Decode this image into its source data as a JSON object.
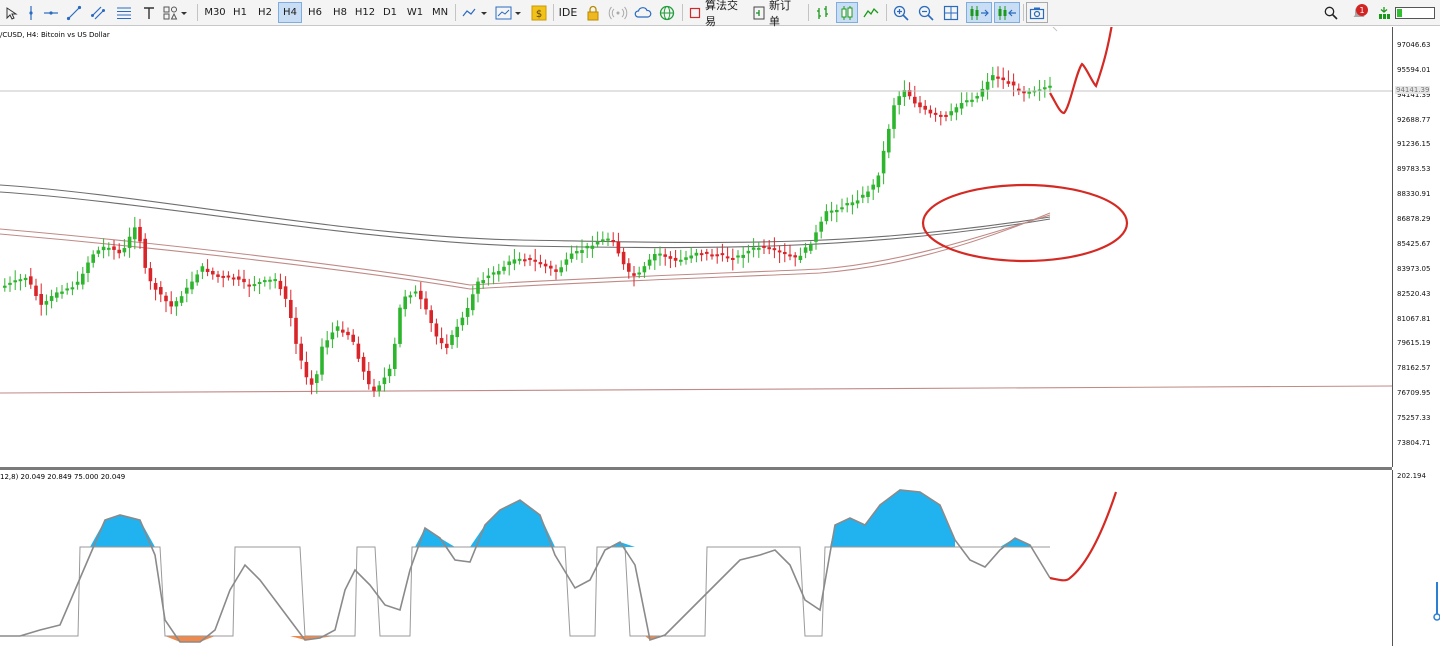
{
  "toolbar": {
    "timeframes": [
      "M30",
      "H1",
      "H2",
      "H4",
      "H6",
      "H8",
      "H12",
      "D1",
      "W1",
      "MN"
    ],
    "selected_timeframe": "H4",
    "ide_label": "IDE",
    "algo_label": "算法交易",
    "new_order_label": "新订单",
    "notification_count": "1"
  },
  "chart": {
    "title": "/CUSD, H4:  Bitcoin vs US Dollar",
    "price_labels": [
      "97046.63",
      "95594.01",
      "94141.39",
      "92688.77",
      "91236.15",
      "89783.53",
      "88330.91",
      "86878.29",
      "85425.67",
      "83973.05",
      "82520.43",
      "81067.81",
      "79615.19",
      "78162.57",
      "76709.95",
      "75257.33",
      "73804.71"
    ],
    "current_price_label": "94141.39"
  },
  "oscillator": {
    "title": "12,8) 20.049 20.849 75.000 20.049",
    "scale_label": "202.194"
  },
  "colors": {
    "bull_candle": "#2db52d",
    "bear_candle": "#d9252a",
    "annotation": "#d42a23",
    "osc_up_fill": "#21b3f0",
    "osc_down_fill": "#f0894b"
  }
}
